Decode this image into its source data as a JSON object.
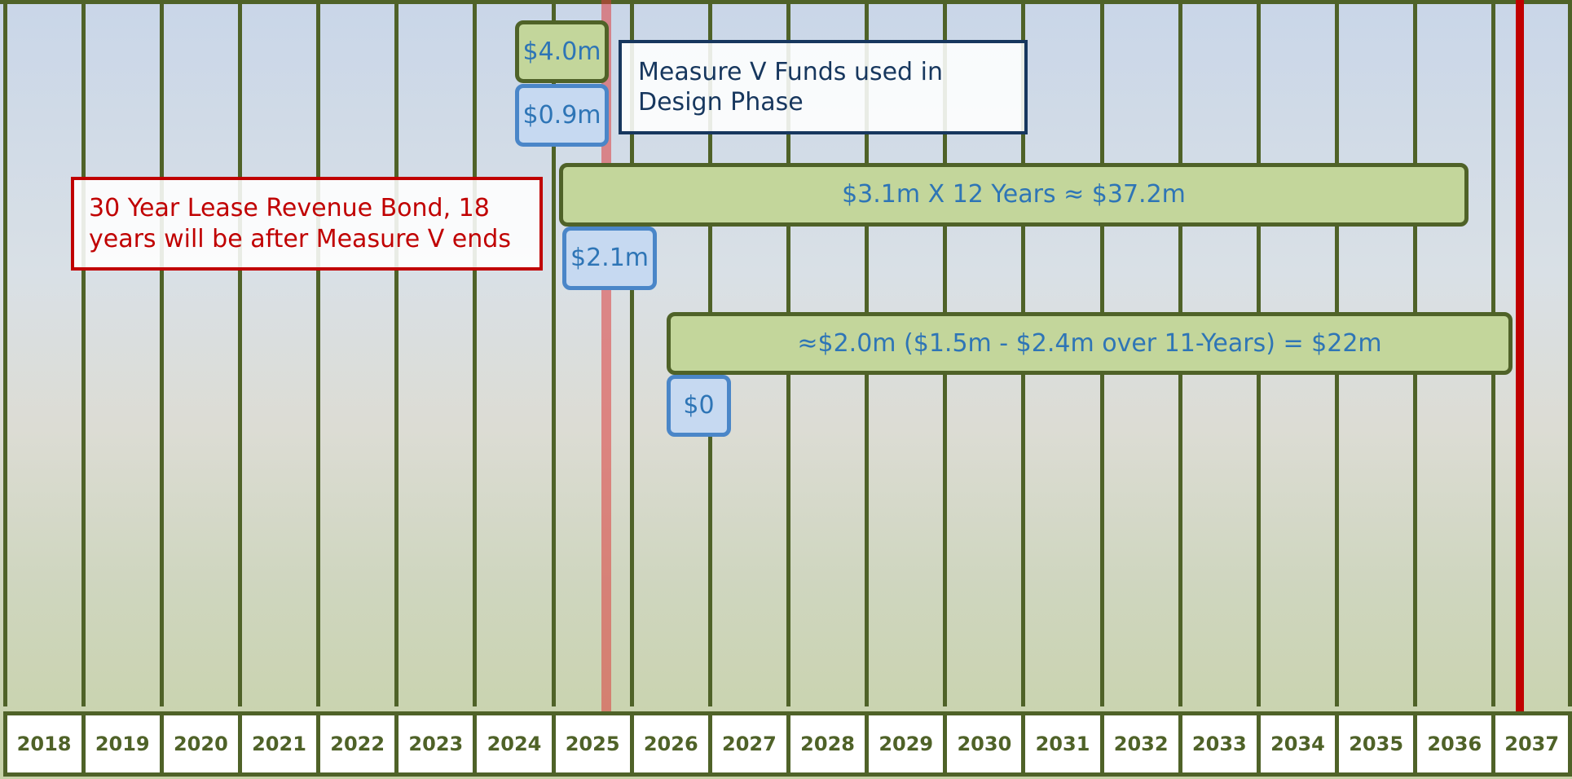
{
  "years": [
    "2018",
    "2019",
    "2020",
    "2021",
    "2022",
    "2023",
    "2024",
    "2025",
    "2026",
    "2027",
    "2028",
    "2029",
    "2030",
    "2031",
    "2032",
    "2033",
    "2034",
    "2035",
    "2036",
    "2037"
  ],
  "labels": {
    "design_total": "$4.0m",
    "design_measure_v": "$0.9m",
    "design_note": "Measure V Funds used in Design Phase",
    "bond_bar": "$3.1m X 12 Years ≈ $37.2m",
    "bond_measure_v": "$2.1m",
    "operations_bar": "≈$2.0m ($1.5m - $2.4m over 11-Years) = $22m",
    "operations_measure_v": "$0",
    "bond_note": "30 Year Lease Revenue Bond, 18 years will be after Measure V ends"
  }
}
